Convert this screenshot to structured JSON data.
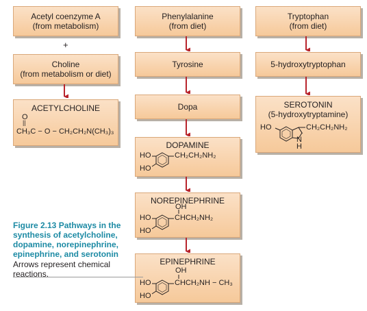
{
  "column1": {
    "acetyl": {
      "line1": "Acetyl coenzyme A",
      "line2": "(from metabolism)"
    },
    "plus": "+",
    "choline": {
      "line1": "Choline",
      "line2": "(from metabolism or diet)"
    },
    "acetylcholine": {
      "name": "ACETYLCHOLINE",
      "carbonyl_o": "O",
      "carbonyl_bond": "||",
      "formula": "CH₃C − O − CH₂CH₂N(CH₃)₃"
    }
  },
  "column2": {
    "phenylalanine": {
      "line1": "Phenylalanine",
      "line2": "(from diet)"
    },
    "tyrosine": "Tyrosine",
    "dopa": "Dopa",
    "dopamine": {
      "name": "DOPAMINE",
      "ho1": "HO",
      "ho2": "HO",
      "chain": "CH₂CH₂NH₂"
    },
    "norepinephrine": {
      "name": "NOREPINEPHRINE",
      "oh": "OH",
      "ho1": "HO",
      "ho2": "HO",
      "chain": "CHCH₂NH₂"
    },
    "epinephrine": {
      "name": "EPINEPHRINE",
      "oh": "OH",
      "ho1": "HO",
      "ho2": "HO",
      "chain": "CHCH₂NH − CH₃"
    }
  },
  "column3": {
    "tryptophan": {
      "line1": "Tryptophan",
      "line2": "(from diet)"
    },
    "hydroxytryptophan": "5-hydroxytryptophan",
    "serotonin": {
      "name": "SEROTONIN",
      "alt_name": "(5-hydroxytryptamine)",
      "ho": "HO",
      "chain": "CH₂CH₂NH₂",
      "n": "N",
      "h": "H"
    }
  },
  "caption": {
    "title": "Figure 2.13  Pathways in the synthesis of acetylcholine, dopamine, norepinephrine, epinephrine, and serotonin",
    "body": "Arrows represent chemical reactions."
  },
  "colors": {
    "box_fill_top": "#fbe1c7",
    "box_fill_bottom": "#f6c99a",
    "arrow": "#b8242c",
    "caption_title": "#1c8aa4"
  }
}
